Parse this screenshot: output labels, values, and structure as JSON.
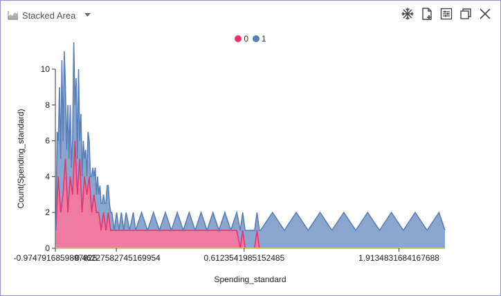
{
  "header": {
    "title": "Stacked Area",
    "icon": "area-chart-icon"
  },
  "toolbar": {
    "icons": [
      "snowflake-icon",
      "new-document-icon",
      "settings-panel-icon",
      "restore-window-icon",
      "close-icon"
    ]
  },
  "colors": {
    "series0": "#e8336e",
    "series0_fill": "#f07ba2",
    "series1": "#5b7fb8",
    "series1_fill": "#8aa6cf",
    "zero_line": "#c8c870"
  },
  "chart_data": {
    "type": "area",
    "stacked": true,
    "xlabel": "Spending_standard",
    "ylabel": "Count(Spending_standard)",
    "ylim": [
      0,
      10
    ],
    "xlim": [
      -0.9747916859897825,
      2.3
    ],
    "yticks": [
      0,
      2,
      4,
      6,
      8,
      10
    ],
    "xticks": [
      -0.9747916859897825,
      -0.462275827451699,
      0.6123541985152485,
      1.9134831684167688
    ],
    "xtick_labels": [
      "-0.9747916859897825",
      "-0.462275827451699​54",
      "0.6123541985152485",
      "1.9134831684167688"
    ],
    "legend_placement": "top-center",
    "series": [
      {
        "name": "0",
        "points": [
          [
            -0.97,
            1
          ],
          [
            -0.95,
            4
          ],
          [
            -0.93,
            2
          ],
          [
            -0.91,
            3
          ],
          [
            -0.89,
            5
          ],
          [
            -0.87,
            2
          ],
          [
            -0.85,
            4
          ],
          [
            -0.83,
            3
          ],
          [
            -0.81,
            6
          ],
          [
            -0.79,
            3
          ],
          [
            -0.77,
            5
          ],
          [
            -0.75,
            2
          ],
          [
            -0.73,
            4
          ],
          [
            -0.71,
            3
          ],
          [
            -0.69,
            4
          ],
          [
            -0.67,
            2
          ],
          [
            -0.65,
            3
          ],
          [
            -0.63,
            2
          ],
          [
            -0.61,
            2
          ],
          [
            -0.59,
            1
          ],
          [
            -0.57,
            2
          ],
          [
            -0.55,
            1
          ],
          [
            -0.53,
            2
          ],
          [
            -0.51,
            1
          ],
          [
            -0.49,
            1
          ],
          [
            -0.47,
            1
          ],
          [
            -0.45,
            1
          ],
          [
            -0.4,
            1
          ],
          [
            -0.3,
            1
          ],
          [
            -0.2,
            1
          ],
          [
            -0.1,
            1
          ],
          [
            0.0,
            1
          ],
          [
            0.1,
            1
          ],
          [
            0.2,
            1
          ],
          [
            0.3,
            1
          ],
          [
            0.4,
            1
          ],
          [
            0.5,
            1
          ],
          [
            0.55,
            1
          ],
          [
            0.58,
            0
          ],
          [
            0.6,
            1
          ],
          [
            0.62,
            0
          ],
          [
            0.7,
            0
          ],
          [
            0.72,
            1
          ],
          [
            0.74,
            0
          ],
          [
            2.3,
            0
          ]
        ]
      },
      {
        "name": "1",
        "points": [
          [
            -0.97,
            0
          ],
          [
            -0.96,
            4
          ],
          [
            -0.95,
            2
          ],
          [
            -0.94,
            6
          ],
          [
            -0.93,
            3
          ],
          [
            -0.92,
            8
          ],
          [
            -0.91,
            3
          ],
          [
            -0.9,
            7
          ],
          [
            -0.89,
            4
          ],
          [
            -0.88,
            2
          ],
          [
            -0.87,
            6
          ],
          [
            -0.86,
            2
          ],
          [
            -0.85,
            4
          ],
          [
            -0.84,
            1
          ],
          [
            -0.83,
            3
          ],
          [
            -0.82,
            7
          ],
          [
            -0.81,
            2
          ],
          [
            -0.8,
            5
          ],
          [
            -0.79,
            2
          ],
          [
            -0.78,
            6
          ],
          [
            -0.77,
            1
          ],
          [
            -0.76,
            4
          ],
          [
            -0.75,
            2
          ],
          [
            -0.74,
            3
          ],
          [
            -0.73,
            1
          ],
          [
            -0.72,
            2
          ],
          [
            -0.71,
            1
          ],
          [
            -0.7,
            3
          ],
          [
            -0.69,
            2
          ],
          [
            -0.68,
            1
          ],
          [
            -0.67,
            2
          ],
          [
            -0.66,
            2
          ],
          [
            -0.65,
            1
          ],
          [
            -0.64,
            2
          ],
          [
            -0.63,
            1
          ],
          [
            -0.62,
            2
          ],
          [
            -0.61,
            1
          ],
          [
            -0.6,
            2
          ],
          [
            -0.58,
            1
          ],
          [
            -0.56,
            1
          ],
          [
            -0.54,
            2
          ],
          [
            -0.52,
            1
          ],
          [
            -0.5,
            1
          ],
          [
            -0.48,
            0
          ],
          [
            -0.46,
            1
          ],
          [
            -0.44,
            0
          ],
          [
            -0.42,
            1
          ],
          [
            -0.4,
            0
          ],
          [
            -0.38,
            1
          ],
          [
            -0.35,
            0
          ],
          [
            -0.32,
            1
          ],
          [
            -0.3,
            0
          ],
          [
            -0.25,
            1
          ],
          [
            -0.2,
            0
          ],
          [
            -0.15,
            1
          ],
          [
            -0.1,
            0
          ],
          [
            -0.05,
            1
          ],
          [
            0.0,
            0
          ],
          [
            0.05,
            1
          ],
          [
            0.1,
            0
          ],
          [
            0.15,
            1
          ],
          [
            0.2,
            0
          ],
          [
            0.25,
            1
          ],
          [
            0.3,
            0
          ],
          [
            0.35,
            1
          ],
          [
            0.4,
            0
          ],
          [
            0.45,
            1
          ],
          [
            0.5,
            0
          ],
          [
            0.55,
            1
          ],
          [
            0.58,
            1
          ],
          [
            0.62,
            1
          ],
          [
            0.7,
            1
          ],
          [
            0.75,
            1
          ],
          [
            0.85,
            2
          ],
          [
            0.95,
            1
          ],
          [
            1.05,
            2
          ],
          [
            1.15,
            1
          ],
          [
            1.25,
            2
          ],
          [
            1.35,
            1
          ],
          [
            1.45,
            2
          ],
          [
            1.55,
            1
          ],
          [
            1.65,
            2
          ],
          [
            1.75,
            1
          ],
          [
            1.85,
            2
          ],
          [
            1.95,
            1
          ],
          [
            2.05,
            2
          ],
          [
            2.15,
            1
          ],
          [
            2.25,
            2
          ],
          [
            2.3,
            1
          ]
        ]
      }
    ]
  }
}
